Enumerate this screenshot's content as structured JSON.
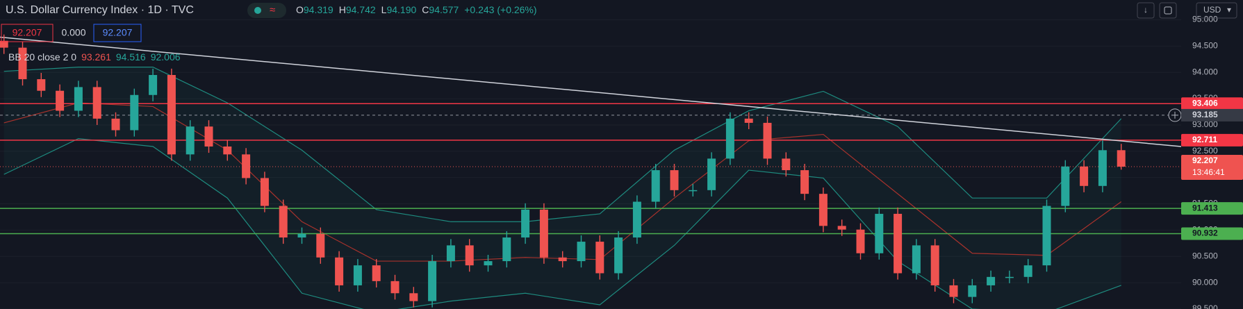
{
  "header": {
    "title": "U.S. Dollar Currency Index · 1D · TVC",
    "ohlc": [
      {
        "key": "O",
        "value": "94.319"
      },
      {
        "key": "H",
        "value": "94.742"
      },
      {
        "key": "L",
        "value": "94.190"
      },
      {
        "key": "C",
        "value": "94.577"
      }
    ],
    "change": "+0.243 (+0.26%)",
    "boxes": [
      "92.207",
      "0.000",
      "92.207"
    ],
    "currency": "USD"
  },
  "chart_data": {
    "type": "candlestick",
    "colors": {
      "up": "#26a69a",
      "down": "#ef5350"
    },
    "open": [
      94.6,
      94.47,
      93.87,
      93.65,
      93.27,
      93.72,
      93.12,
      92.9,
      93.57,
      93.95,
      92.44,
      92.97,
      92.59,
      92.44,
      91.99,
      91.46,
      90.86,
      90.93,
      90.48,
      89.95,
      90.33,
      90.03,
      89.8,
      89.65,
      90.41,
      90.71,
      90.33,
      90.41,
      90.86,
      91.39,
      90.48,
      90.41,
      90.78,
      90.18,
      90.86,
      91.54,
      92.14,
      91.76,
      91.76,
      92.36,
      93.12,
      93.04,
      92.36,
      92.14,
      91.69,
      91.08,
      91.01,
      90.56,
      91.31,
      90.18,
      90.71,
      89.95,
      89.73,
      89.95,
      90.11,
      90.11,
      90.33,
      91.46,
      92.21,
      91.84,
      92.52
    ],
    "high": [
      94.72,
      94.59,
      93.99,
      93.77,
      93.84,
      93.84,
      93.24,
      93.69,
      94.07,
      94.07,
      93.09,
      93.09,
      92.71,
      92.56,
      92.11,
      91.58,
      91.05,
      91.05,
      90.6,
      90.45,
      90.45,
      90.15,
      89.92,
      90.53,
      90.83,
      90.83,
      90.53,
      90.98,
      91.51,
      91.51,
      90.6,
      90.9,
      90.9,
      90.98,
      91.66,
      92.26,
      92.26,
      91.88,
      92.48,
      93.24,
      93.24,
      93.16,
      92.48,
      92.26,
      91.81,
      91.2,
      91.13,
      91.43,
      91.43,
      90.83,
      90.83,
      90.07,
      90.07,
      90.23,
      90.23,
      90.45,
      91.58,
      92.33,
      92.33,
      92.71,
      92.64
    ],
    "low": [
      94.35,
      93.75,
      93.53,
      93.15,
      93.15,
      93.0,
      92.78,
      92.78,
      93.45,
      92.32,
      92.32,
      92.47,
      92.32,
      91.87,
      91.34,
      90.74,
      90.74,
      90.36,
      89.83,
      89.83,
      89.91,
      89.68,
      89.53,
      89.53,
      90.29,
      90.21,
      90.21,
      90.29,
      90.74,
      90.36,
      90.29,
      90.29,
      90.06,
      90.06,
      90.74,
      91.42,
      91.64,
      91.64,
      91.64,
      92.24,
      92.92,
      92.24,
      92.02,
      91.57,
      90.96,
      90.89,
      90.44,
      90.44,
      90.06,
      90.06,
      89.83,
      89.61,
      89.61,
      89.83,
      89.99,
      89.99,
      90.21,
      91.34,
      91.72,
      91.72,
      92.15
    ],
    "close": [
      94.47,
      93.87,
      93.65,
      93.27,
      93.72,
      93.12,
      92.9,
      93.57,
      93.95,
      92.44,
      92.97,
      92.59,
      92.44,
      91.99,
      91.46,
      90.86,
      90.93,
      90.48,
      89.95,
      90.33,
      90.03,
      89.8,
      89.65,
      90.41,
      90.71,
      90.33,
      90.41,
      90.86,
      91.39,
      90.48,
      90.41,
      90.78,
      90.18,
      90.86,
      91.54,
      92.14,
      91.76,
      91.76,
      92.36,
      93.12,
      93.04,
      92.36,
      92.14,
      91.69,
      91.08,
      91.01,
      90.56,
      91.31,
      90.18,
      90.71,
      89.95,
      89.73,
      89.95,
      90.11,
      90.11,
      90.33,
      91.46,
      92.21,
      91.84,
      92.52,
      92.207
    ],
    "ylim": [
      89.5,
      95.376
    ],
    "yticks": [
      {
        "value": 95,
        "label": "95.000"
      },
      {
        "value": 94.5,
        "label": "94.500"
      },
      {
        "value": 94,
        "label": "94.000"
      },
      {
        "value": 93.5,
        "label": "93.500"
      },
      {
        "value": 93,
        "label": "93.000"
      },
      {
        "value": 92.5,
        "label": "92.500"
      },
      {
        "value": 92,
        "label": "92.000"
      },
      {
        "value": 91.5,
        "label": "91.500"
      },
      {
        "value": 91,
        "label": "91.000"
      },
      {
        "value": 90.5,
        "label": "90.500"
      },
      {
        "value": 90,
        "label": "90.000"
      },
      {
        "value": 89.5,
        "label": "89.500"
      }
    ],
    "bollinger": {
      "label": "BB 20 close 2 0",
      "values": [
        {
          "text": "93.261",
          "color": "#ef5350"
        },
        {
          "text": "94.516",
          "color": "#26a69a"
        },
        {
          "text": "92.006",
          "color": "#26a69a"
        }
      ],
      "index": [
        0,
        4,
        8,
        12,
        16,
        20,
        24,
        28,
        32,
        36,
        40,
        44,
        48,
        52,
        56,
        60
      ],
      "upper": [
        94.02,
        94.1,
        94.1,
        93.42,
        92.52,
        91.39,
        91.16,
        91.16,
        91.31,
        92.52,
        93.27,
        93.64,
        92.97,
        91.61,
        91.61,
        93.12
      ],
      "middle": [
        93.04,
        93.42,
        93.35,
        92.52,
        91.16,
        90.41,
        90.41,
        90.48,
        90.44,
        91.61,
        92.7,
        92.82,
        91.69,
        90.56,
        90.52,
        91.54
      ],
      "lower": [
        92.06,
        92.74,
        92.59,
        91.61,
        89.8,
        89.43,
        89.65,
        89.8,
        89.58,
        90.71,
        92.14,
        91.99,
        90.41,
        89.5,
        89.43,
        89.95
      ],
      "band_color": "#1e8c80",
      "middle_color": "#a8322c"
    },
    "levels": [
      {
        "value": 93.406,
        "color": "#f23645"
      },
      {
        "value": 92.711,
        "color": "#f23645"
      },
      {
        "value": 91.413,
        "color": "#4caf50"
      },
      {
        "value": 90.932,
        "color": "#4caf50"
      }
    ],
    "crosshair": 93.185,
    "last_price": {
      "value": 92.207,
      "countdown": "13:46:41"
    },
    "trendline": [
      94.67,
      92.59
    ]
  }
}
